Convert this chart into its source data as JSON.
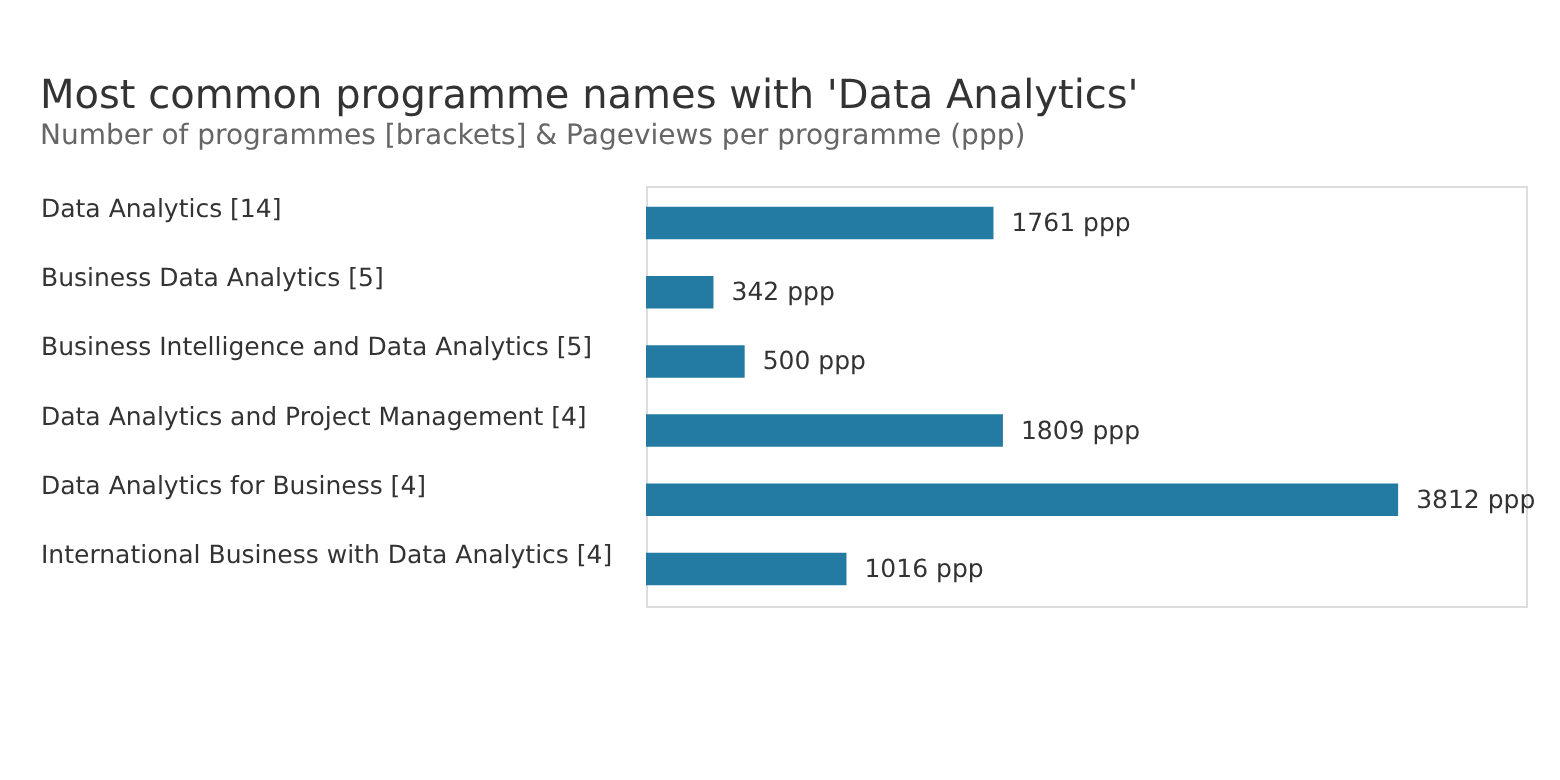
{
  "chart_data": {
    "type": "bar",
    "orientation": "horizontal",
    "title": "Most common programme names with 'Data Analytics'",
    "subtitle": "Number of programmes [brackets] & Pageviews per programme (ppp)",
    "categories": [
      "Data Analytics [14]",
      "Business Data Analytics [5]",
      "Business Intelligence and Data Analytics [5]",
      "Data Analytics and Project Management [4]",
      "Data Analytics for Business [4]",
      "International Business with Data Analytics [4]"
    ],
    "values": [
      1761,
      342,
      500,
      1809,
      3812,
      1016
    ],
    "value_labels": [
      "1761 ppp",
      "342 ppp",
      "500 ppp",
      "1809 ppp",
      "3812 ppp",
      "1016 ppp"
    ],
    "color": "#237ba3"
  }
}
